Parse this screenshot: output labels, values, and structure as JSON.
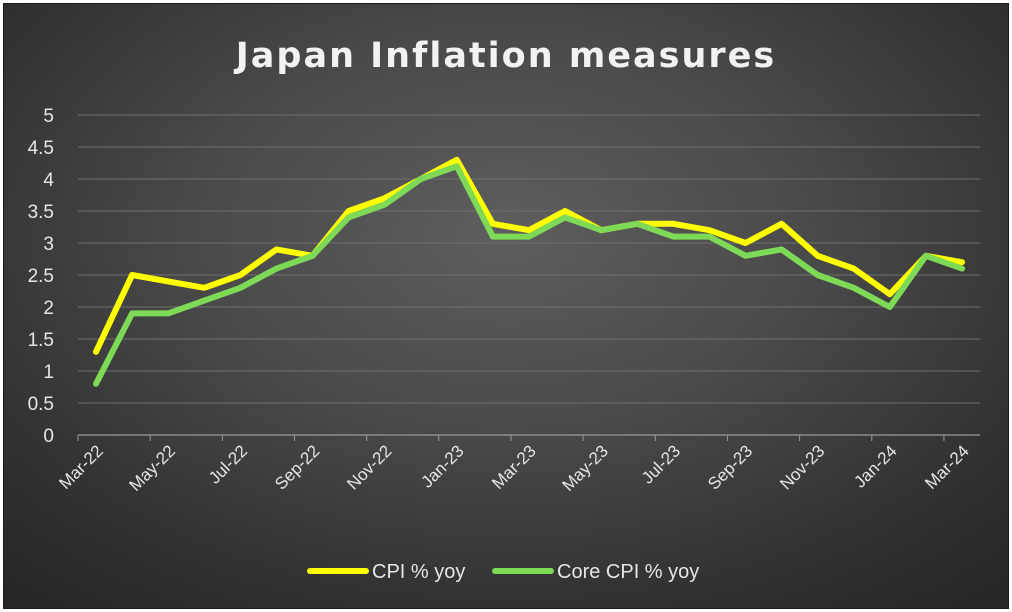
{
  "chart_data": {
    "type": "line",
    "title": "Japan Inflation measures",
    "xlabel": "",
    "ylabel": "",
    "ylim": [
      0,
      5
    ],
    "yticks": [
      "0",
      "0.5",
      "1",
      "1.5",
      "2",
      "2.5",
      "3",
      "3.5",
      "4",
      "4.5",
      "5"
    ],
    "x": [
      "Mar-22",
      "Apr-22",
      "May-22",
      "Jun-22",
      "Jul-22",
      "Aug-22",
      "Sep-22",
      "Oct-22",
      "Nov-22",
      "Dec-22",
      "Jan-23",
      "Feb-23",
      "Mar-23",
      "Apr-23",
      "May-23",
      "Jun-23",
      "Jul-23",
      "Aug-23",
      "Sep-23",
      "Oct-23",
      "Nov-23",
      "Dec-23",
      "Jan-24",
      "Feb-24",
      "Mar-24"
    ],
    "xtick_labels": [
      "Mar-22",
      "May-22",
      "Jul-22",
      "Sep-22",
      "Nov-22",
      "Jan-23",
      "Mar-23",
      "May-23",
      "Jul-23",
      "Sep-23",
      "Nov-23",
      "Jan-24",
      "Mar-24"
    ],
    "grid": "horizontal",
    "legend_position": "bottom",
    "series": [
      {
        "name": "CPI % yoy",
        "color": "#ffff00",
        "values": [
          1.3,
          2.5,
          2.4,
          2.3,
          2.5,
          2.9,
          2.8,
          3.5,
          3.7,
          4.0,
          4.3,
          3.3,
          3.2,
          3.5,
          3.2,
          3.3,
          3.3,
          3.2,
          3.0,
          3.3,
          2.8,
          2.6,
          2.2,
          2.8,
          2.7
        ]
      },
      {
        "name": "Core CPI % yoy",
        "color": "#7ed957",
        "values": [
          0.8,
          1.9,
          1.9,
          2.1,
          2.3,
          2.6,
          2.8,
          3.4,
          3.6,
          4.0,
          4.2,
          3.1,
          3.1,
          3.4,
          3.2,
          3.3,
          3.1,
          3.1,
          2.8,
          2.9,
          2.5,
          2.3,
          2.0,
          2.8,
          2.6
        ]
      }
    ]
  }
}
